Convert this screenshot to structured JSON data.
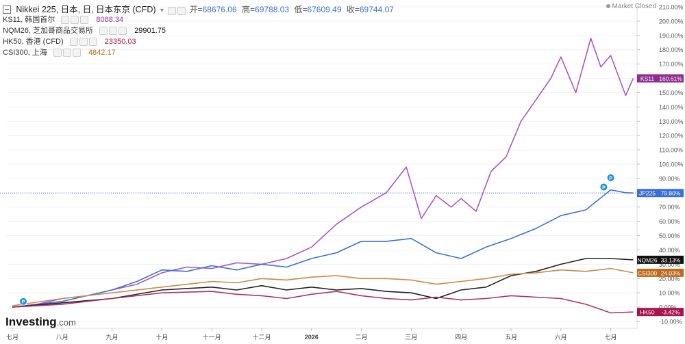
{
  "header": {
    "title": "Nikkei 225, 日本, 日, 日本东京 (CFD)",
    "open_label": "开=",
    "open": "68676.06",
    "high_label": "高=",
    "high": "69788.03",
    "low_label": "低=",
    "low": "67609.49",
    "close_label": "收=",
    "close": "69744.07",
    "market_status": "Market Closed"
  },
  "legend": [
    {
      "name": "KS11, 韩国首尔",
      "value": "8088.34",
      "color": "#9b2f9b"
    },
    {
      "name": "NQM26, 芝加哥商品交易所",
      "value": "29901.75",
      "color": "#111111"
    },
    {
      "name": "HK50, 香港 (CFD)",
      "value": "23350.03",
      "color": "#a8144f"
    },
    {
      "name": "CSI300, 上海",
      "value": "4842.17",
      "color": "#c06a1a"
    }
  ],
  "logo": {
    "brand": "Investing",
    "suffix": ".com"
  },
  "colors": {
    "ks11": "#a855c8",
    "jp225": "#3a6fd8",
    "nqm26": "#222222",
    "hk50": "#b03068",
    "csi300": "#c98a45"
  },
  "chart_data": {
    "type": "line",
    "x": [
      "七月",
      "八月",
      "九月",
      "十月",
      "十一月",
      "十二月",
      "2026",
      "二月",
      "三月",
      "四月",
      "五月",
      "六月",
      "七月"
    ],
    "ylabel": "",
    "ylim": [
      -10,
      210
    ],
    "yticks": [
      210,
      200,
      190,
      180,
      170,
      160,
      150,
      140,
      130,
      120,
      110,
      100,
      90,
      80,
      70,
      60,
      50,
      40,
      30,
      20,
      10,
      0,
      -10
    ],
    "y_tick_labels": [
      "210.00%",
      "200.00%",
      "190.00%",
      "180.00%",
      "170.00%",
      "160.00%",
      "150.00%",
      "140.00%",
      "130.00%",
      "120.00%",
      "110.00%",
      "100.00%",
      "90.00%",
      "80.00%",
      "70.00%",
      "60.00%",
      "50.00%",
      "40.00%",
      "30.00%",
      "20.00%",
      "10.00%",
      "0.00%",
      "-10.00%"
    ],
    "series": [
      {
        "name": "KS11",
        "label": "160.61%",
        "color": "#a855c8",
        "x": [
          0,
          0.5,
          1,
          1.5,
          2,
          2.5,
          3,
          3.5,
          4,
          4.5,
          5,
          5.5,
          6,
          6.5,
          7,
          7.5,
          7.9,
          8.2,
          8.5,
          8.8,
          9,
          9.3,
          9.6,
          9.9,
          10.2,
          10.5,
          10.8,
          11,
          11.3,
          11.6,
          11.8,
          12,
          12.3,
          12.45
        ],
        "y": [
          0,
          2,
          6,
          8,
          12,
          16,
          24,
          28,
          27,
          31,
          30,
          34,
          42,
          58,
          70,
          80,
          98,
          62,
          78,
          70,
          76,
          67,
          95,
          105,
          130,
          145,
          160,
          175,
          150,
          188,
          168,
          176,
          148,
          160
        ]
      },
      {
        "name": "JP225",
        "label": "79.80%",
        "color": "#3a6fd8",
        "x": [
          0,
          0.5,
          1,
          1.5,
          2,
          2.5,
          3,
          3.5,
          4,
          4.5,
          5,
          5.5,
          6,
          6.5,
          7,
          7.5,
          8,
          8.5,
          9,
          9.5,
          10,
          10.5,
          11,
          11.5,
          12,
          12.3,
          12.45
        ],
        "y": [
          0,
          2,
          4,
          8,
          12,
          18,
          26,
          25,
          29,
          26,
          30,
          28,
          34,
          38,
          46,
          46,
          48,
          38,
          34,
          42,
          48,
          55,
          64,
          68,
          82,
          80,
          79.8
        ]
      },
      {
        "name": "NQM26",
        "label": "33.13%",
        "color": "#222222",
        "x": [
          0,
          1,
          2,
          3,
          4,
          4.5,
          5,
          5.5,
          6,
          6.5,
          7,
          7.5,
          8,
          8.5,
          9,
          9.5,
          10,
          10.5,
          11,
          11.5,
          12,
          12.45
        ],
        "y": [
          0,
          3,
          6,
          12,
          14,
          12,
          15,
          12,
          14,
          12,
          13,
          11,
          10,
          6,
          12,
          14,
          22,
          25,
          30,
          34,
          34,
          33.1
        ]
      },
      {
        "name": "CSI300",
        "label": "24.03%",
        "color": "#c98a45",
        "x": [
          0,
          1,
          2,
          3,
          4,
          4.5,
          5,
          5.5,
          6,
          6.5,
          7,
          7.5,
          8,
          8.5,
          9,
          9.5,
          10,
          10.5,
          11,
          11.5,
          12,
          12.45
        ],
        "y": [
          1,
          6,
          10,
          14,
          18,
          17,
          20,
          19,
          21,
          22,
          20,
          20,
          19,
          16,
          18,
          20,
          23,
          24,
          26,
          25,
          27,
          24
        ]
      },
      {
        "name": "HK50",
        "label": "-3.42%",
        "color": "#b03068",
        "x": [
          0,
          1,
          2,
          3,
          4,
          4.5,
          5,
          5.5,
          6,
          6.5,
          7,
          7.5,
          8,
          8.5,
          9,
          9.5,
          10,
          10.5,
          11,
          11.5,
          12,
          12.45
        ],
        "y": [
          0,
          2,
          6,
          10,
          11,
          9,
          8,
          6,
          9,
          11,
          8,
          6,
          5,
          7,
          5,
          6,
          8,
          7,
          6,
          2,
          -4,
          -3.4
        ]
      }
    ]
  }
}
